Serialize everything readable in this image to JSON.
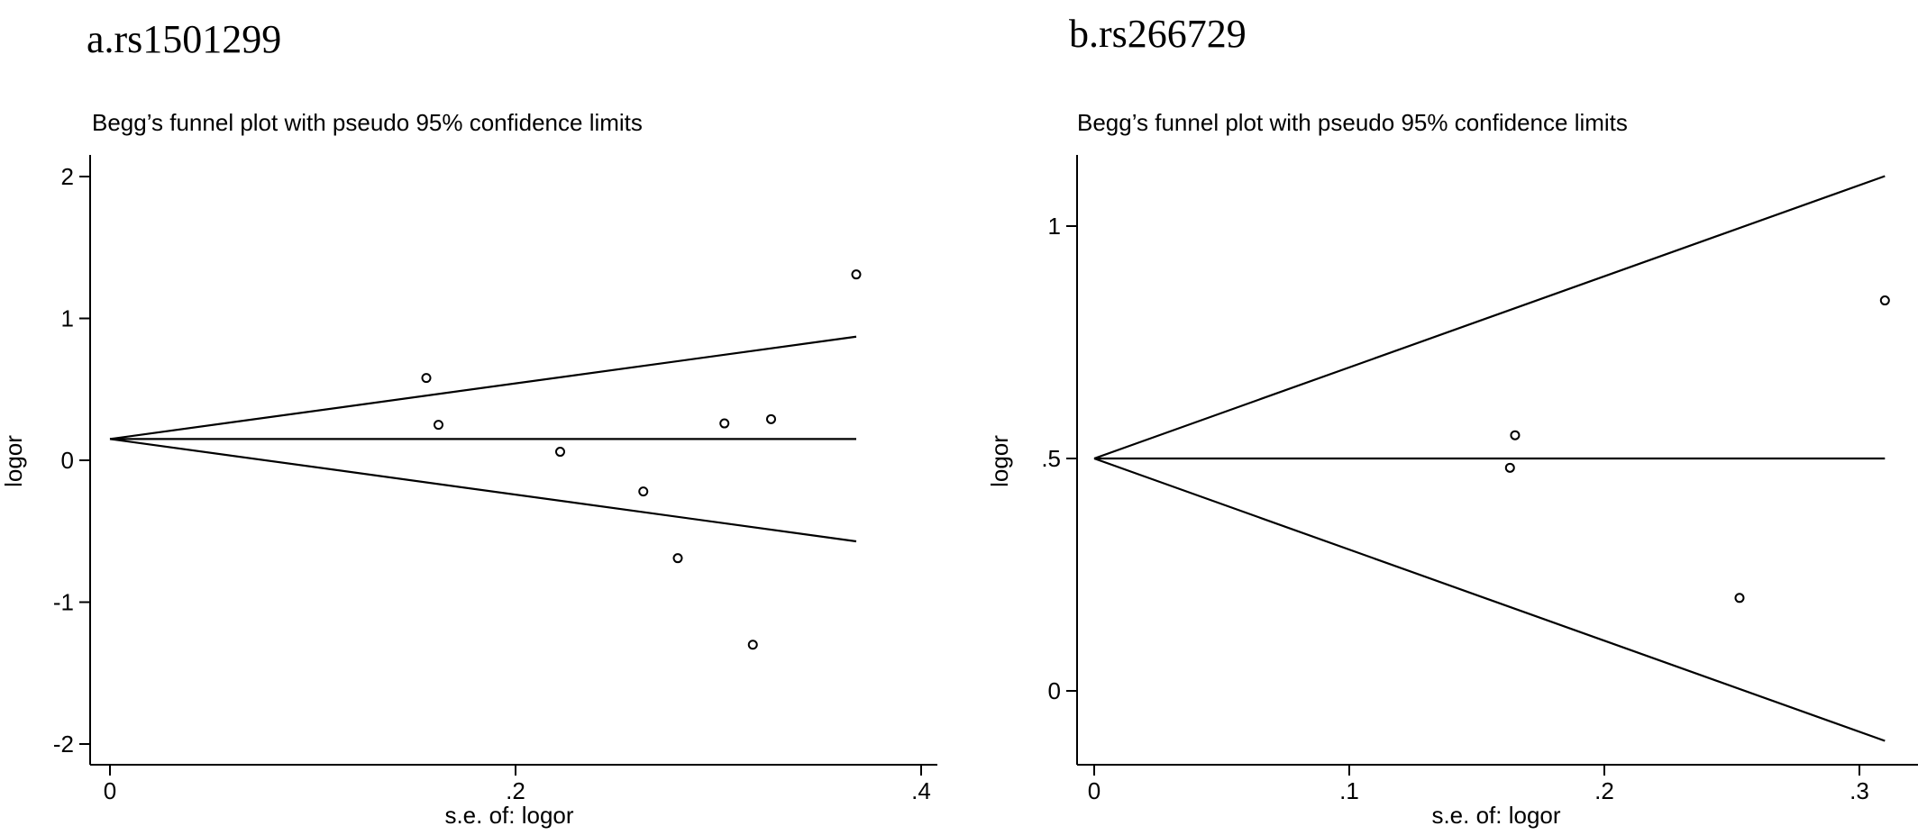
{
  "chart_data": [
    {
      "panel_label": "a.rs1501299",
      "type": "scatter",
      "title": "Begg’s funnel plot with pseudo 95% confidence limits",
      "xlabel": "s.e. of: logor",
      "ylabel": "logor",
      "xlim": [
        0,
        0.4
      ],
      "ylim": [
        -2,
        2
      ],
      "xticks": [
        {
          "v": 0,
          "label": "0"
        },
        {
          "v": 0.2,
          "label": ".2"
        },
        {
          "v": 0.4,
          "label": ".4"
        }
      ],
      "yticks": [
        {
          "v": -2,
          "label": "-2"
        },
        {
          "v": -1,
          "label": "-1"
        },
        {
          "v": 0,
          "label": "0"
        },
        {
          "v": 1,
          "label": "1"
        },
        {
          "v": 2,
          "label": "2"
        }
      ],
      "pooled_estimate": 0.15,
      "x_max_line": 0.368,
      "points": [
        {
          "x": 0.156,
          "y": 0.58
        },
        {
          "x": 0.162,
          "y": 0.25
        },
        {
          "x": 0.222,
          "y": 0.06
        },
        {
          "x": 0.263,
          "y": -0.22
        },
        {
          "x": 0.28,
          "y": -0.69
        },
        {
          "x": 0.303,
          "y": 0.26
        },
        {
          "x": 0.317,
          "y": -1.3
        },
        {
          "x": 0.326,
          "y": 0.29
        },
        {
          "x": 0.368,
          "y": 1.31
        }
      ]
    },
    {
      "panel_label": "b.rs266729",
      "type": "scatter",
      "title": "Begg’s funnel plot with pseudo 95% confidence limits",
      "xlabel": "s.e. of: logor",
      "ylabel": "logor",
      "xlim": [
        0,
        0.3
      ],
      "ylim": [
        0,
        1
      ],
      "xticks": [
        {
          "v": 0,
          "label": "0"
        },
        {
          "v": 0.1,
          "label": ".1"
        },
        {
          "v": 0.2,
          "label": ".2"
        },
        {
          "v": 0.3,
          "label": ".3"
        }
      ],
      "yticks": [
        {
          "v": 0,
          "label": "0"
        },
        {
          "v": 0.5,
          "label": ".5"
        },
        {
          "v": 1,
          "label": "1"
        }
      ],
      "pooled_estimate": 0.5,
      "x_max_line": 0.31,
      "points": [
        {
          "x": 0.163,
          "y": 0.48
        },
        {
          "x": 0.165,
          "y": 0.55
        },
        {
          "x": 0.253,
          "y": 0.2
        },
        {
          "x": 0.31,
          "y": 0.84
        }
      ]
    }
  ]
}
